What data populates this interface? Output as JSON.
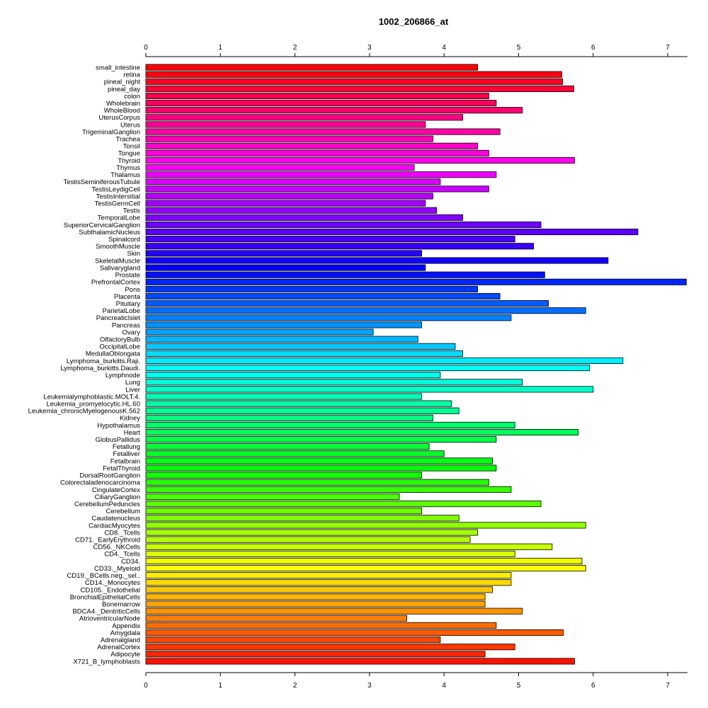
{
  "chart_data": {
    "type": "bar",
    "orientation": "horizontal",
    "title": "1002_206866_at",
    "xlabel": "",
    "ylabel": "",
    "xlim": [
      0,
      7.25
    ],
    "xticks": [
      "0",
      "1",
      "2",
      "3",
      "4",
      "5",
      "6",
      "7"
    ],
    "grid": false,
    "legend": "none",
    "categories": [
      "small_intestine",
      "retina",
      "pineal_night",
      "pineal_day",
      "colon",
      "Wholebrain",
      "WholeBlood",
      "UterusCorpus",
      "Uterus",
      "TrigeminalGanglion",
      "Trachea",
      "Tonsil",
      "Tongue",
      "Thyroid",
      "Thymus",
      "Thalamus",
      "TestisSeminiferousTubule",
      "TestisLeydigCell",
      "TestisIntersitial",
      "TestisGermCell",
      "Testis",
      "TemporalLobe",
      "SuperiorCervicalGanglion",
      "SubthalamicNucleus",
      "Spinalcord",
      "SmoothMuscle",
      "Skin",
      "SkeletalMuscle",
      "Salivarygland",
      "Prostate",
      "PrefrontalCortex",
      "Pons",
      "Placenta",
      "Pituitary",
      "ParietalLobe",
      "PancreaticIslet",
      "Pancreas",
      "Ovary",
      "OlfactoryBulb",
      "OccipitalLobe",
      "MedullaOblongata",
      "Lymphoma_burkitts.Raji.",
      "Lymphoma_burkitts.Daudi.",
      "Lymphnode",
      "Lung",
      "Liver",
      "Leukemialymphoblastic.MOLT.4.",
      "Leukemia_promyelocytic.HL.60",
      "Leukemia_chronicMyelogenousK.562",
      "Kidney",
      "Hypothalamus",
      "Heart",
      "GlobusPallidus",
      "Fetallung",
      "Fetalliver",
      "Fetalbrain",
      "FetalThyroid",
      "DorsalRootGanglion",
      "Colorectaladenocarcinoma",
      "CingulateCortex",
      "CiliaryGanglion",
      "CerebellumPeduncles",
      "Cerebellum",
      "Caudatenucleus",
      "CardiacMyocytes",
      "CD8._Tcells",
      "CD71._EarlyErythroid",
      "CD56._NKCells",
      "CD4._Tcells",
      "CD34.",
      "CD33._Myeloid",
      "CD19._BCells.neg._sel..",
      "CD14._Monocytes",
      "CD105._Endothelial",
      "BronchialEpithelialCells",
      "Bonemarrow",
      "BDCA4._DentriticCells",
      "AtrioventricularNode",
      "Appendix",
      "Amygdala",
      "Adrenalgland",
      "AdrenalCortex",
      "Adipocyte",
      "X721_B_lymphoblasts"
    ],
    "values": [
      4.45,
      5.58,
      5.59,
      5.74,
      4.6,
      4.7,
      5.05,
      4.25,
      3.75,
      4.75,
      3.85,
      4.45,
      4.6,
      5.75,
      3.6,
      4.7,
      3.95,
      4.6,
      3.85,
      3.75,
      3.9,
      4.25,
      5.3,
      6.6,
      4.95,
      5.2,
      3.7,
      6.2,
      3.75,
      5.35,
      7.25,
      4.45,
      4.75,
      5.4,
      5.9,
      4.9,
      3.7,
      3.05,
      3.65,
      4.15,
      4.25,
      6.4,
      5.95,
      3.95,
      5.05,
      6.0,
      3.7,
      4.1,
      4.2,
      3.85,
      4.95,
      5.8,
      4.7,
      3.8,
      4.0,
      4.65,
      4.7,
      3.7,
      4.6,
      4.9,
      3.4,
      5.3,
      3.7,
      4.2,
      5.9,
      4.45,
      4.35,
      5.45,
      4.95,
      5.85,
      5.9,
      4.9,
      4.9,
      4.65,
      4.55,
      4.55,
      5.05,
      3.5,
      4.7,
      5.6,
      3.95,
      4.95,
      4.55,
      5.75
    ],
    "colors": "rainbow palette, one hue per bar, cycling from red (top) through magenta, blue, cyan, green, yellow, orange back to red (bottom)"
  }
}
